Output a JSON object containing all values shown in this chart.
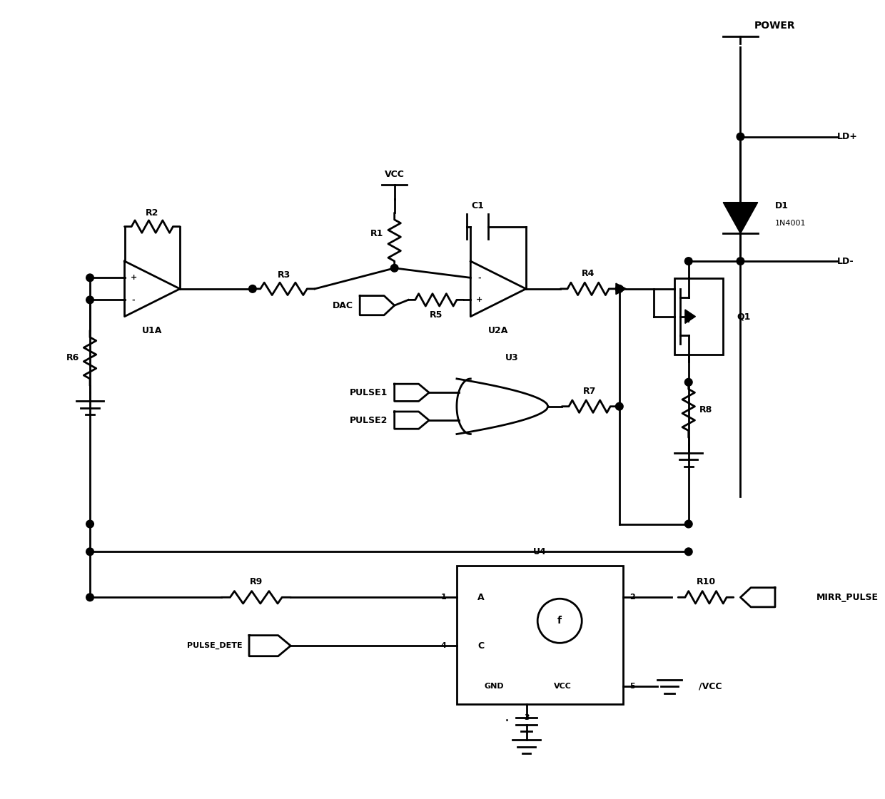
{
  "bg_color": "#ffffff",
  "lc": "#000000",
  "lw": 2.0,
  "figsize": [
    12.4,
    11.2
  ],
  "dpi": 100,
  "xlim": [
    0,
    124
  ],
  "ylim": [
    0,
    112
  ]
}
